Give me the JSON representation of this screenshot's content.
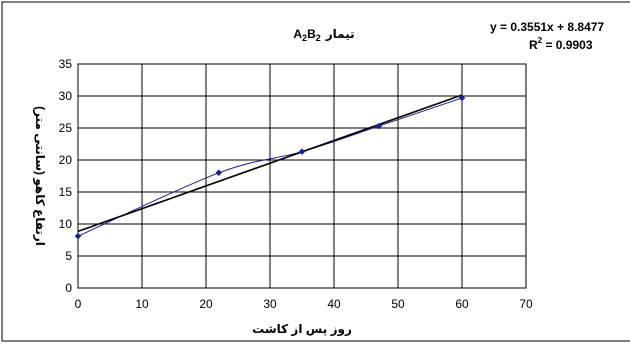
{
  "chart_data": {
    "type": "scatter",
    "title_prefix": "تیمار",
    "title_sub1": "2",
    "title_sub2": "2",
    "xlabel": "روز پس از کاشت",
    "ylabel": "ارتفاع کاهو (سانتی متر)",
    "xlim": [
      0,
      70
    ],
    "ylim": [
      0,
      35
    ],
    "x_ticks": [
      0,
      10,
      20,
      30,
      40,
      50,
      60,
      70
    ],
    "y_ticks": [
      0,
      5,
      10,
      15,
      20,
      25,
      30,
      35
    ],
    "grid": true,
    "series": [
      {
        "x": [
          0,
          22,
          35,
          47,
          60
        ],
        "y": [
          8.1,
          18.0,
          21.3,
          25.3,
          29.7
        ],
        "color": "#1a1aa6",
        "marker": "diamond",
        "smooth": true
      }
    ],
    "trendline": {
      "type": "linear",
      "slope": 0.3551,
      "intercept": 8.8477,
      "x_range": [
        0,
        60
      ],
      "color": "#000000",
      "equation": "y = 0.3551x + 8.8477",
      "r2_prefix": "R",
      "r2_exp": "2",
      "r2_value": " = 0.9903"
    }
  }
}
